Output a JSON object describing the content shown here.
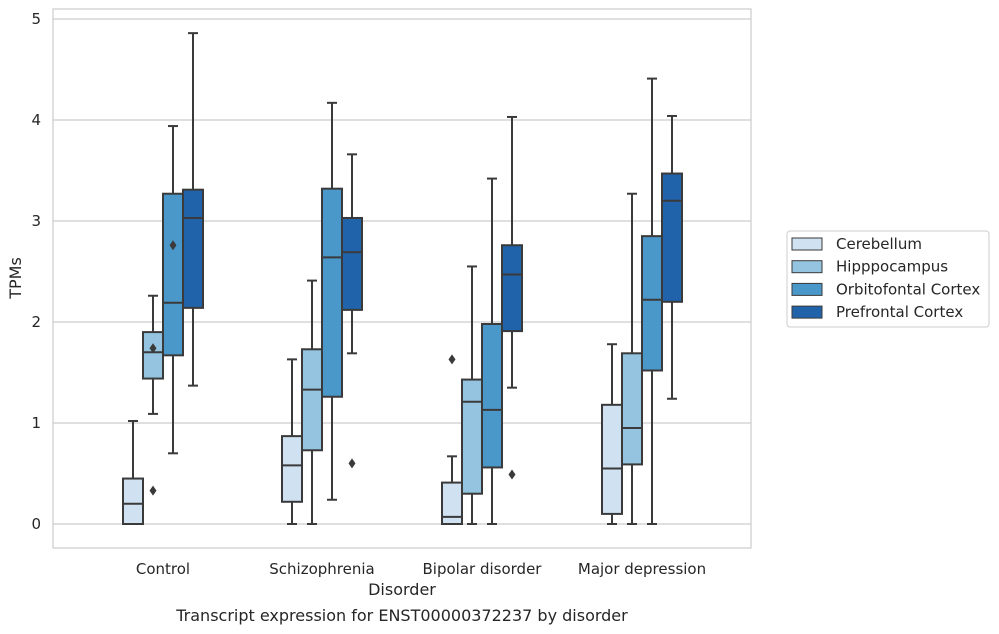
{
  "chart_data": {
    "type": "box",
    "title": "",
    "caption": "Transcript expression for ENST00000372237 by disorder",
    "xlabel": "Disorder",
    "ylabel": "TPMs",
    "ylim": [
      -0.23,
      5.1
    ],
    "yticks": [
      "0",
      "1",
      "2",
      "3",
      "4",
      "5"
    ],
    "grid": true,
    "legend_position": "right",
    "categories": [
      "Control",
      "Schizophrenia",
      "Bipolar disorder",
      "Major depression"
    ],
    "series": [
      {
        "name": "Cerebellum",
        "color": "#d0e1f2",
        "boxes": [
          {
            "whisker_low": 0.0,
            "q1": 0.0,
            "median": 0.2,
            "q3": 0.45,
            "whisker_high": 1.02,
            "outliers": []
          },
          {
            "whisker_low": 0.0,
            "q1": 0.22,
            "median": 0.58,
            "q3": 0.87,
            "whisker_high": 1.63,
            "outliers": []
          },
          {
            "whisker_low": 0.0,
            "q1": 0.0,
            "median": 0.07,
            "q3": 0.41,
            "whisker_high": 0.67,
            "outliers": [
              1.63
            ]
          },
          {
            "whisker_low": 0.0,
            "q1": 0.1,
            "median": 0.55,
            "q3": 1.18,
            "whisker_high": 1.78,
            "outliers": []
          }
        ]
      },
      {
        "name": "Hipppocampus",
        "color": "#94c4df",
        "boxes": [
          {
            "whisker_low": 1.09,
            "q1": 1.44,
            "median": 1.7,
            "q3": 1.9,
            "whisker_high": 2.26,
            "outliers": [
              1.74,
              0.33
            ]
          },
          {
            "whisker_low": 0.0,
            "q1": 0.73,
            "median": 1.33,
            "q3": 1.73,
            "whisker_high": 2.41,
            "outliers": []
          },
          {
            "whisker_low": 0.0,
            "q1": 0.3,
            "median": 1.21,
            "q3": 1.43,
            "whisker_high": 2.55,
            "outliers": []
          },
          {
            "whisker_low": 0.0,
            "q1": 0.59,
            "median": 0.95,
            "q3": 1.69,
            "whisker_high": 3.27,
            "outliers": []
          }
        ]
      },
      {
        "name": "Orbitofontal Cortex",
        "color": "#4a98c9",
        "boxes": [
          {
            "whisker_low": 0.7,
            "q1": 1.67,
            "median": 2.19,
            "q3": 3.27,
            "whisker_high": 3.94,
            "outliers": [
              2.76
            ]
          },
          {
            "whisker_low": 0.24,
            "q1": 1.26,
            "median": 2.64,
            "q3": 3.32,
            "whisker_high": 4.17,
            "outliers": []
          },
          {
            "whisker_low": 0.0,
            "q1": 0.56,
            "median": 1.13,
            "q3": 1.98,
            "whisker_high": 3.42,
            "outliers": []
          },
          {
            "whisker_low": 0.0,
            "q1": 1.52,
            "median": 2.22,
            "q3": 2.85,
            "whisker_high": 4.41,
            "outliers": []
          }
        ]
      },
      {
        "name": "Prefrontal Cortex",
        "color": "#2163aa",
        "boxes": [
          {
            "whisker_low": 1.37,
            "q1": 2.14,
            "median": 3.03,
            "q3": 3.31,
            "whisker_high": 4.86,
            "outliers": []
          },
          {
            "whisker_low": 1.69,
            "q1": 2.12,
            "median": 2.69,
            "q3": 3.03,
            "whisker_high": 3.66,
            "outliers": [
              0.6
            ]
          },
          {
            "whisker_low": 1.35,
            "q1": 1.91,
            "median": 2.47,
            "q3": 2.76,
            "whisker_high": 4.03,
            "outliers": [
              0.49
            ]
          },
          {
            "whisker_low": 1.24,
            "q1": 2.2,
            "median": 3.2,
            "q3": 3.47,
            "whisker_high": 4.04,
            "outliers": []
          }
        ]
      }
    ]
  }
}
